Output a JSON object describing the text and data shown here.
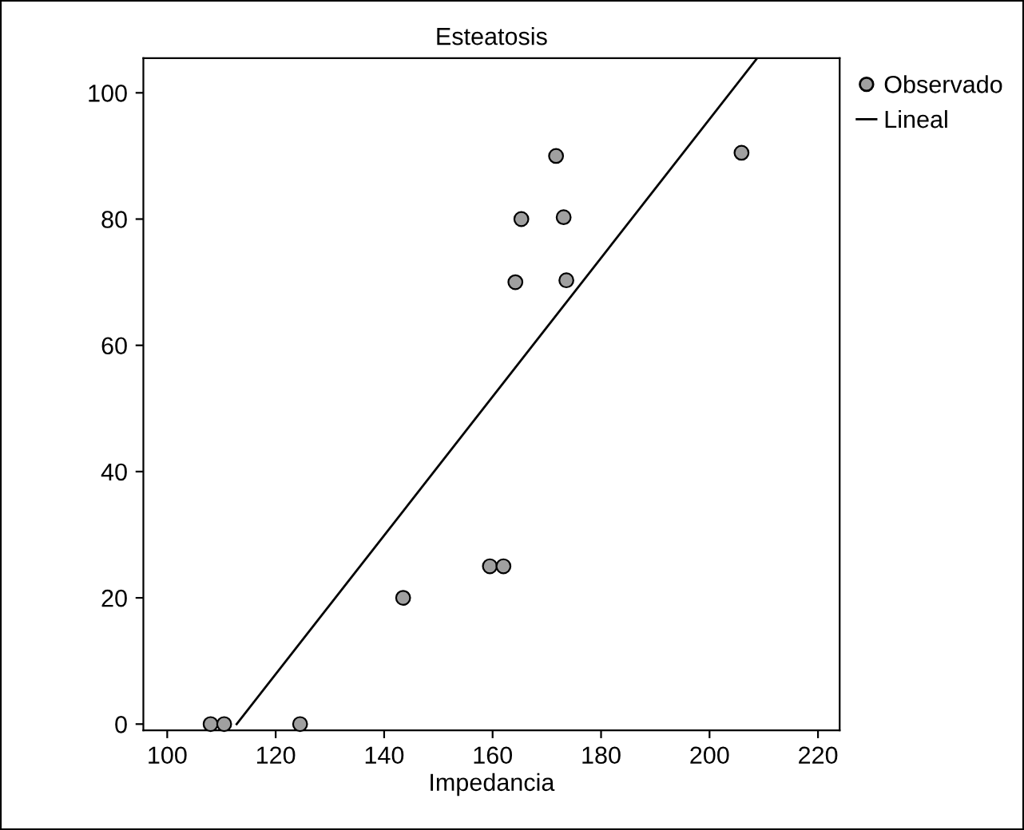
{
  "chart_data": {
    "type": "scatter",
    "title": "Esteatosis",
    "xlabel": "Impedancia",
    "xlim": [
      95.6,
      224
    ],
    "ylim": [
      -1,
      105.5
    ],
    "xticks": [
      100,
      120,
      140,
      160,
      180,
      200,
      220
    ],
    "yticks": [
      0,
      20,
      40,
      60,
      80,
      100
    ],
    "grid": false,
    "legend": "top right",
    "series": [
      {
        "name": "Observado",
        "marker": "circle",
        "color": "#a0a0a0",
        "x": [
          171.7,
          205.9,
          165.3,
          173.1,
          164.2,
          173.6,
          159.5,
          162.0,
          143.5,
          108,
          110.5,
          124.5
        ],
        "values": [
          90,
          90.5,
          80,
          80.3,
          70,
          70.3,
          25,
          25,
          20,
          0,
          0,
          0
        ]
      },
      {
        "name": "Lineal",
        "type": "line",
        "color": "#000000",
        "x": [
          112.8,
          208.8
        ],
        "values": [
          0,
          105.5
        ]
      }
    ]
  }
}
